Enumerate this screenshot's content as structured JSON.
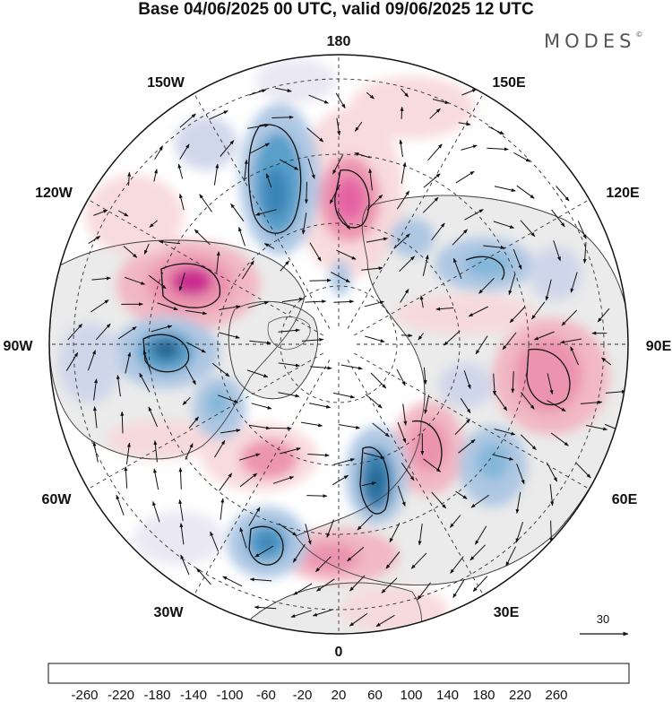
{
  "title": "Base 04/06/2025 00 UTC, valid 09/06/2025 12 UTC",
  "brand": "MODES",
  "brand_mark": "©",
  "longitude_labels": {
    "lon_180": "180",
    "lon_150e": "150E",
    "lon_120e": "120E",
    "lon_90e": "90E",
    "lon_60e": "60E",
    "lon_30e": "30E",
    "lon_0": "0",
    "lon_30w": "30W",
    "lon_60w": "60W",
    "lon_90w": "90W",
    "lon_120w": "120W",
    "lon_150w": "150W"
  },
  "reference_vector": {
    "value": "30"
  },
  "colorbar": {
    "colors": [
      "#0d3a5c",
      "#175d8c",
      "#2a7ab0",
      "#4c98c7",
      "#7ab2d8",
      "#a9c4e2",
      "#cdd4ea",
      "#e8e6f2",
      "#ffffff",
      "#f8d8da",
      "#f2b3bf",
      "#ec8cab",
      "#e4579c",
      "#c81e88",
      "#9a0f7e",
      "#5c0b6e"
    ],
    "labels": [
      "-260",
      "-220",
      "-180",
      "-140",
      "-100",
      "-60",
      "-20",
      "20",
      "60",
      "100",
      "140",
      "180",
      "220",
      "260"
    ]
  },
  "map": {
    "anomaly_features": [
      {
        "type": "negative",
        "level": 4
      },
      {
        "type": "negative",
        "level": 5
      },
      {
        "type": "positive",
        "level": 4
      },
      {
        "type": "positive",
        "level": 5
      },
      {
        "type": "negative",
        "level": 3
      },
      {
        "type": "negative",
        "level": 5
      },
      {
        "type": "positive",
        "level": 3
      },
      {
        "type": "negative",
        "level": 4
      },
      {
        "type": "positive",
        "level": 3
      },
      {
        "type": "negative",
        "level": 4
      },
      {
        "type": "positive",
        "level": 3
      },
      {
        "type": "negative",
        "level": 3
      }
    ]
  }
}
